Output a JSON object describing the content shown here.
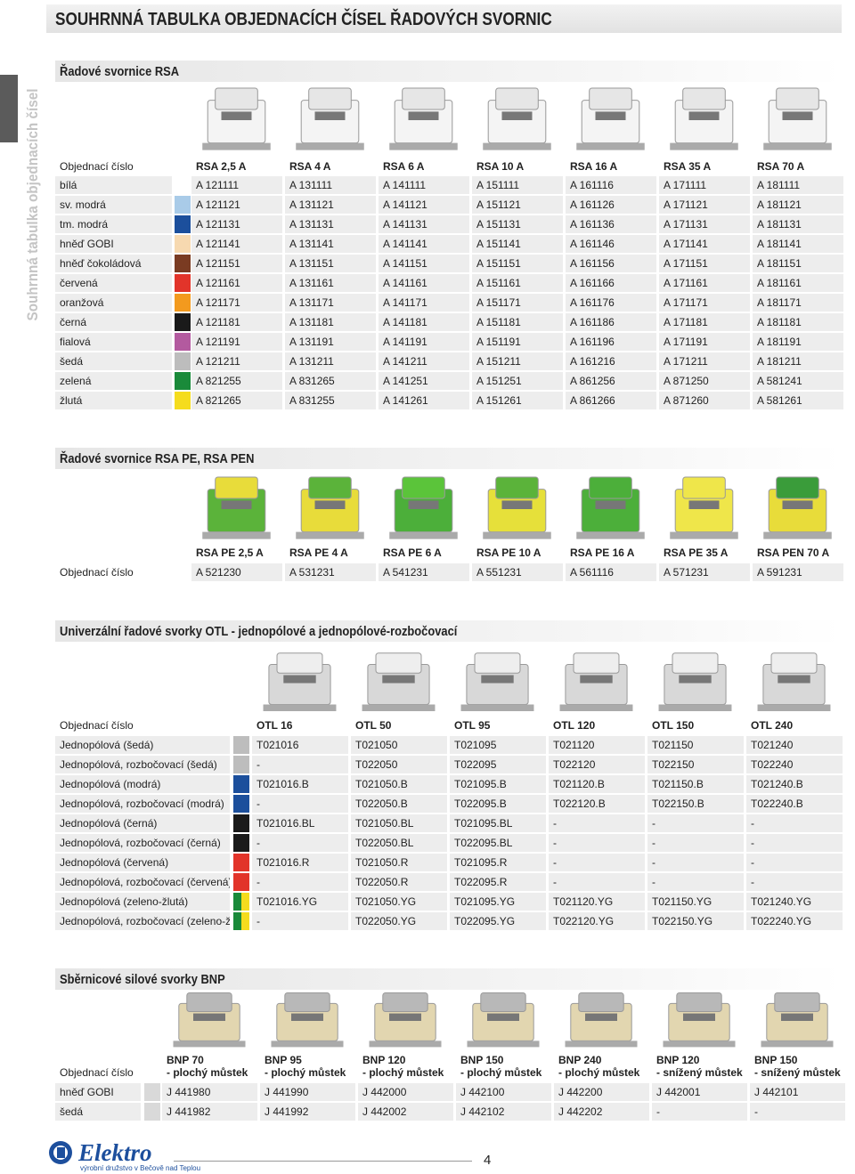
{
  "header": {
    "title": "SOUHRNNÁ TABULKA OBJEDNACÍCH ČÍSEL ŘADOVÝCH SVORNIC",
    "side_label": "Souhrnná tabulka objednacích čísel"
  },
  "sections": [
    {
      "heading": "Řadové svornice RSA",
      "corner": "Objednací číslo",
      "columns": [
        "RSA 2,5 A",
        "RSA 4 A",
        "RSA 6 A",
        "RSA 10 A",
        "RSA 16 A",
        "RSA 35 A",
        "RSA 70 A"
      ],
      "rows": [
        {
          "label": "bílá",
          "color": [
            "#ffffff"
          ],
          "values": [
            "A 121111",
            "A 131111",
            "A 141111",
            "A 151111",
            "A 161116",
            "A 171111",
            "A 181111"
          ]
        },
        {
          "label": "sv. modrá",
          "color": [
            "#a9cbe8"
          ],
          "values": [
            "A 121121",
            "A 131121",
            "A 141121",
            "A 151121",
            "A 161126",
            "A 171121",
            "A 181121"
          ]
        },
        {
          "label": "tm. modrá",
          "color": [
            "#1c4f9c"
          ],
          "values": [
            "A 121131",
            "A 131131",
            "A 141131",
            "A 151131",
            "A 161136",
            "A 171131",
            "A 181131"
          ]
        },
        {
          "label": "hněď GOBI",
          "color": [
            "#f7d9b0"
          ],
          "values": [
            "A 121141",
            "A 131141",
            "A 141141",
            "A 151141",
            "A 161146",
            "A 171141",
            "A 181141"
          ]
        },
        {
          "label": "hněď čokoládová",
          "color": [
            "#7a3b22"
          ],
          "values": [
            "A 121151",
            "A 131151",
            "A 141151",
            "A 151151",
            "A 161156",
            "A 171151",
            "A 181151"
          ]
        },
        {
          "label": "červená",
          "color": [
            "#e2342a"
          ],
          "values": [
            "A 121161",
            "A 131161",
            "A 141161",
            "A 151161",
            "A 161166",
            "A 171161",
            "A 181161"
          ]
        },
        {
          "label": "oranžová",
          "color": [
            "#f39a1e"
          ],
          "values": [
            "A 121171",
            "A 131171",
            "A 141171",
            "A 151171",
            "A 161176",
            "A 171171",
            "A 181171"
          ]
        },
        {
          "label": "černá",
          "color": [
            "#1a1a1a"
          ],
          "values": [
            "A 121181",
            "A 131181",
            "A 141181",
            "A 151181",
            "A 161186",
            "A 171181",
            "A 181181"
          ]
        },
        {
          "label": "fialová",
          "color": [
            "#b35a9f"
          ],
          "values": [
            "A 121191",
            "A 131191",
            "A 141191",
            "A 151191",
            "A 161196",
            "A 171191",
            "A 181191"
          ]
        },
        {
          "label": "šedá",
          "color": [
            "#bdbdbd"
          ],
          "values": [
            "A 121211",
            "A 131211",
            "A 141211",
            "A 151211",
            "A 161216",
            "A 171211",
            "A 181211"
          ]
        },
        {
          "label": "zelená",
          "color": [
            "#1a8a3a"
          ],
          "values": [
            "A 821255",
            "A 831265",
            "A 141251",
            "A 151251",
            "A 861256",
            "A 871250",
            "A 581241"
          ]
        },
        {
          "label": "žlutá",
          "color": [
            "#f5dc1e"
          ],
          "values": [
            "A 821265",
            "A 831255",
            "A 141261",
            "A 151261",
            "A 861266",
            "A 871260",
            "A 581261"
          ]
        }
      ]
    },
    {
      "heading": "Řadové svornice RSA PE, RSA PEN",
      "columns": [
        "RSA PE 2,5 A",
        "RSA PE 4 A",
        "RSA PE 6 A",
        "RSA PE 10 A",
        "RSA PE 16 A",
        "RSA PE 35 A",
        "RSA PEN 70 A"
      ],
      "rows": [
        {
          "label": "Objednací číslo",
          "values": [
            "A 521230",
            "A 531231",
            "A 541231",
            "A 551231",
            "A 561116",
            "A 571231",
            "A 591231"
          ]
        }
      ]
    },
    {
      "heading": "Univerzální řadové svorky OTL - jednopólové a jednopólové-rozbočovací",
      "corner": "Objednací číslo",
      "columns": [
        "OTL 16",
        "OTL 50",
        "OTL 95",
        "OTL 120",
        "OTL 150",
        "OTL 240"
      ],
      "rows": [
        {
          "label": "Jednopólová (šedá)",
          "color": [
            "#bdbdbd"
          ],
          "values": [
            "T021016",
            "T021050",
            "T021095",
            "T021120",
            "T021150",
            "T021240"
          ]
        },
        {
          "label": "Jednopólová, rozbočovací (šedá)",
          "color": [
            "#bdbdbd"
          ],
          "values": [
            "-",
            "T022050",
            "T022095",
            "T022120",
            "T022150",
            "T022240"
          ]
        },
        {
          "label": "Jednopólová (modrá)",
          "color": [
            "#1c4f9c"
          ],
          "values": [
            "T021016.B",
            "T021050.B",
            "T021095.B",
            "T021120.B",
            "T021150.B",
            "T021240.B"
          ]
        },
        {
          "label": "Jednopólová, rozbočovací (modrá)",
          "color": [
            "#1c4f9c"
          ],
          "values": [
            "-",
            "T022050.B",
            "T022095.B",
            "T022120.B",
            "T022150.B",
            "T022240.B"
          ]
        },
        {
          "label": "Jednopólová (černá)",
          "color": [
            "#1a1a1a"
          ],
          "values": [
            "T021016.BL",
            "T021050.BL",
            "T021095.BL",
            "-",
            "-",
            "-"
          ]
        },
        {
          "label": "Jednopólová, rozbočovací (černá)",
          "color": [
            "#1a1a1a"
          ],
          "values": [
            "-",
            "T022050.BL",
            "T022095.BL",
            "-",
            "-",
            "-"
          ]
        },
        {
          "label": "Jednopólová (červená)",
          "color": [
            "#e2342a"
          ],
          "values": [
            "T021016.R",
            "T021050.R",
            "T021095.R",
            "-",
            "-",
            "-"
          ]
        },
        {
          "label": "Jednopólová, rozbočovací (červená)",
          "color": [
            "#e2342a"
          ],
          "values": [
            "-",
            "T022050.R",
            "T022095.R",
            "-",
            "-",
            "-"
          ]
        },
        {
          "label": "Jednopólová (zeleno-žlutá)",
          "color": [
            "#1a8a3a",
            "#f5dc1e"
          ],
          "values": [
            "T021016.YG",
            "T021050.YG",
            "T021095.YG",
            "T021120.YG",
            "T021150.YG",
            "T021240.YG"
          ]
        },
        {
          "label": "Jednopólová, rozbočovací (zeleno-žlutá)",
          "color": [
            "#1a8a3a",
            "#f5dc1e"
          ],
          "values": [
            "-",
            "T022050.YG",
            "T022095.YG",
            "T022120.YG",
            "T022150.YG",
            "T022240.YG"
          ]
        }
      ]
    },
    {
      "heading": "Sběrnicové silové svorky BNP",
      "corner": "Objednací číslo",
      "columns": [
        {
          "name": "BNP 70",
          "sub": "- plochý můstek"
        },
        {
          "name": "BNP 95",
          "sub": "- plochý můstek"
        },
        {
          "name": "BNP 120",
          "sub": "- plochý můstek"
        },
        {
          "name": "BNP 150",
          "sub": "- plochý můstek"
        },
        {
          "name": "BNP 240",
          "sub": "- plochý můstek"
        },
        {
          "name": "BNP 120",
          "sub": "- snížený můstek"
        },
        {
          "name": "BNP 150",
          "sub": "- snížený můstek"
        }
      ],
      "rows": [
        {
          "label": "hněď GOBI",
          "color": [
            "#d9d9d9"
          ],
          "values": [
            "J 441980",
            "J 441990",
            "J 442000",
            "J 442100",
            "J 442200",
            "J 442001",
            "J 442101"
          ]
        },
        {
          "label": "šedá",
          "color": [
            "#d9d9d9"
          ],
          "values": [
            "J 441982",
            "J 441992",
            "J 442002",
            "J 442102",
            "J 442202",
            "-",
            "-"
          ]
        }
      ]
    }
  ],
  "footer": {
    "logo": "Elektro",
    "tagline": "výrobní družstvo v Bečově nad Teplou",
    "page": "4"
  }
}
